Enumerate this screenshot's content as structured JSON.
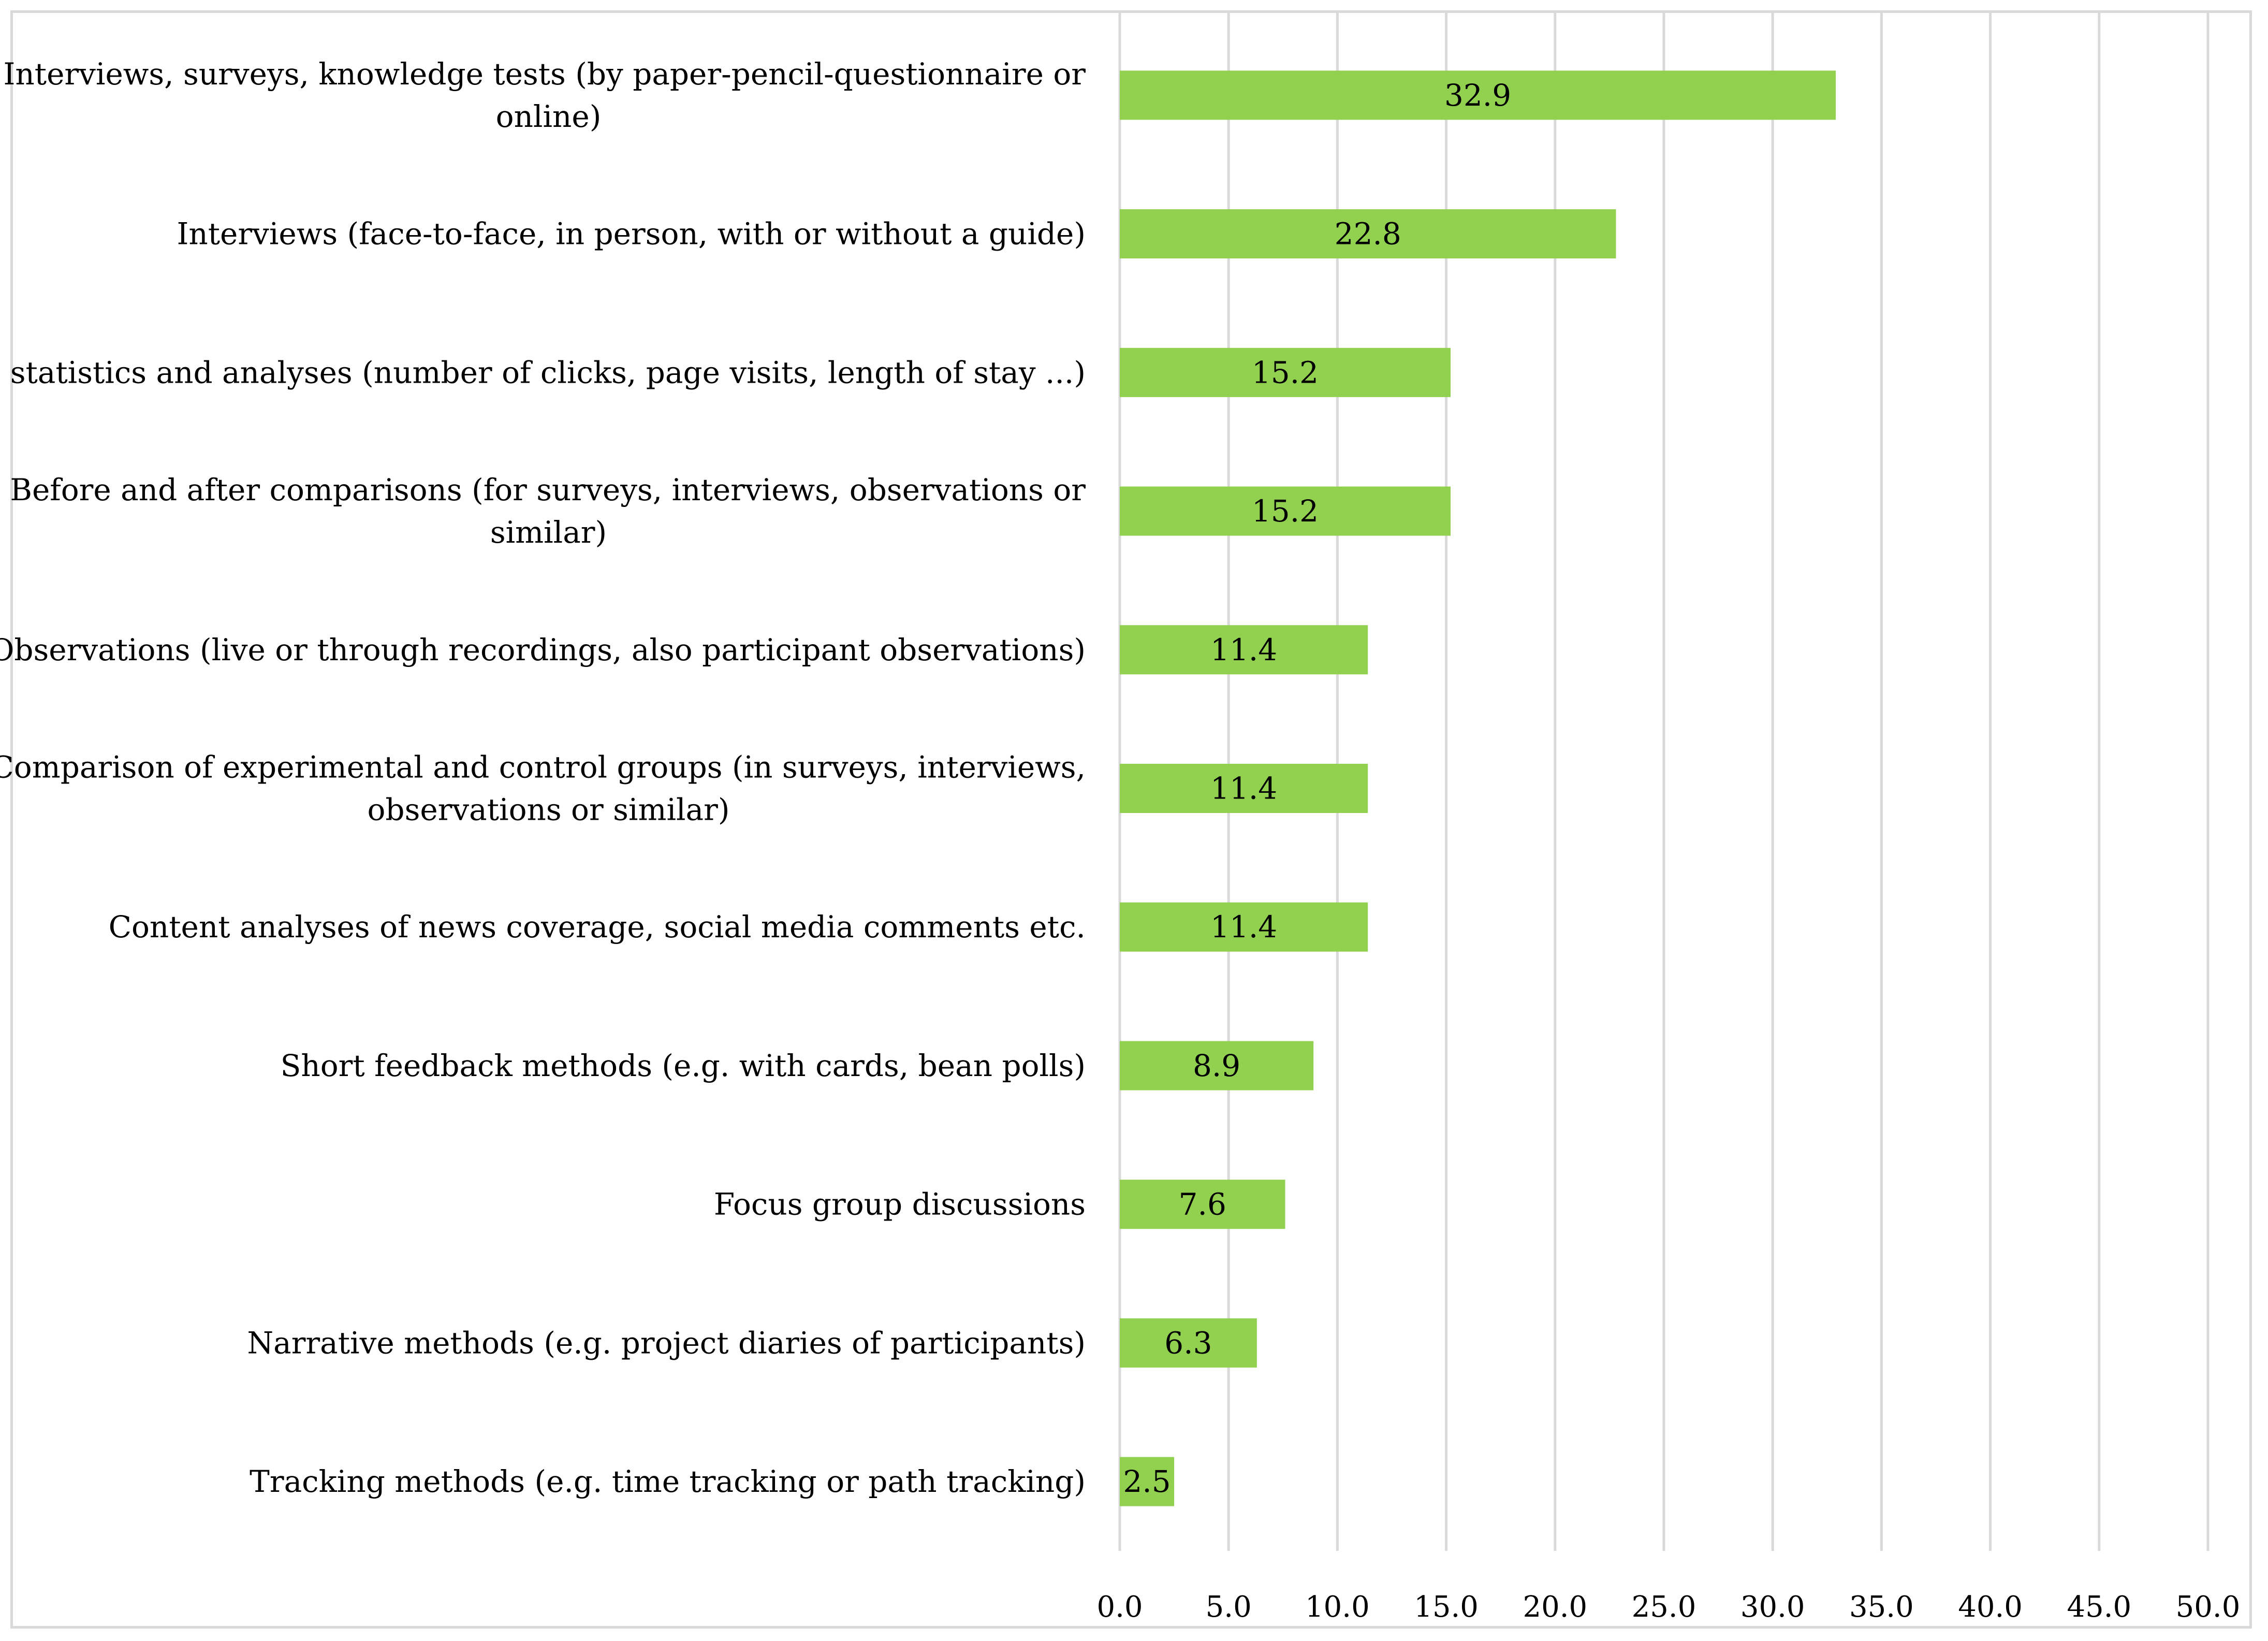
{
  "chart_data": {
    "type": "bar",
    "orientation": "horizontal",
    "categories": [
      [
        "Interviews, surveys, knowledge tests (by paper-pencil-questionnaire or",
        "online)"
      ],
      [
        "Interviews (face-to-face, in person, with or without a guide)"
      ],
      [
        "Web statistics and analyses (number of clicks, page visits, length of stay ...)"
      ],
      [
        "Before and after comparisons (for surveys, interviews, observations or",
        "similar)"
      ],
      [
        "Observations (live or through recordings, also participant observations)"
      ],
      [
        "Comparison of experimental and control groups (in surveys, interviews,",
        "observations or similar)"
      ],
      [
        "Content analyses of news coverage, social media comments etc."
      ],
      [
        "Short feedback methods (e.g. with cards, bean polls)"
      ],
      [
        "Focus group discussions"
      ],
      [
        "Narrative methods (e.g. project diaries of participants)"
      ],
      [
        "Tracking methods (e.g. time tracking or path tracking)"
      ]
    ],
    "values": [
      32.9,
      22.8,
      15.2,
      15.2,
      11.4,
      11.4,
      11.4,
      8.9,
      7.6,
      6.3,
      2.5
    ],
    "value_labels": [
      "32.9",
      "22.8",
      "15.2",
      "15.2",
      "11.4",
      "11.4",
      "11.4",
      "8.9",
      "7.6",
      "6.3",
      "2.5"
    ],
    "xticks": [
      "0.0",
      "5.0",
      "10.0",
      "15.0",
      "20.0",
      "25.0",
      "30.0",
      "35.0",
      "40.0",
      "45.0",
      "50.0"
    ],
    "xlim": [
      0,
      50
    ],
    "xtick_step": 5,
    "grid": true,
    "title": "",
    "xlabel": "",
    "ylabel": "",
    "colors": {
      "bar": "#92d050",
      "grid": "#d9d9d9",
      "text": "#000000"
    }
  }
}
